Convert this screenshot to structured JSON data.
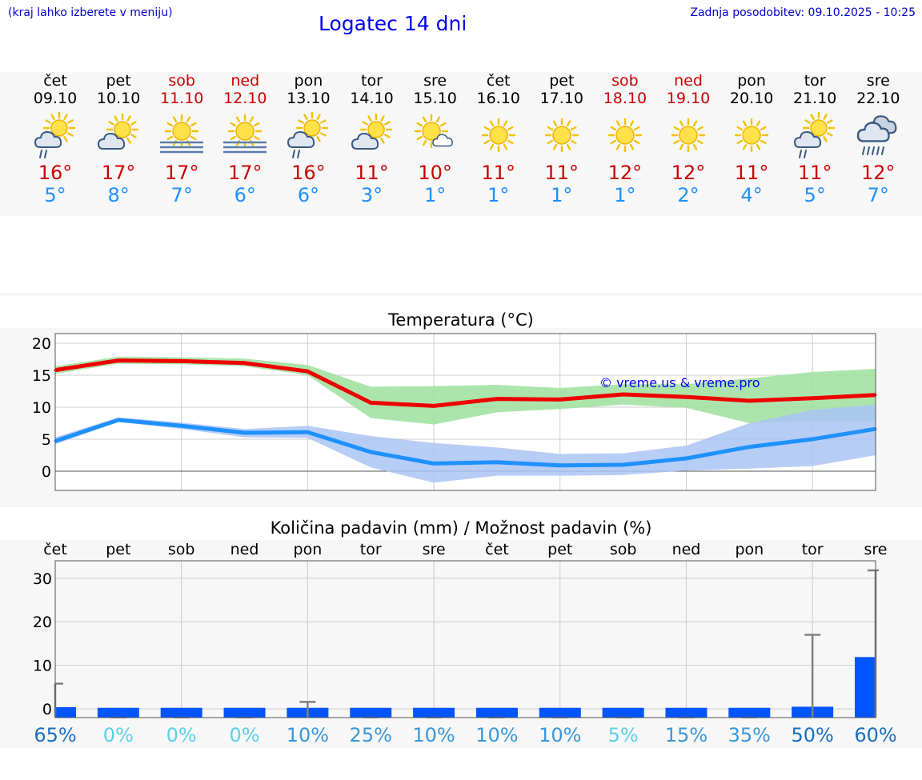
{
  "header": {
    "hint": "(kraj lahko izberete v meniju)",
    "title": "Logatec 14 dni",
    "updated": "Zadnja posodobitev: 09.10.2025 - 10:25"
  },
  "days": [
    {
      "name": "čet",
      "date": "09.10",
      "weekend": false,
      "icon": "sun-cloud-rain-icon",
      "tmax": "16°",
      "tmin": "5°"
    },
    {
      "name": "pet",
      "date": "10.10",
      "weekend": false,
      "icon": "sun-cloud-icon",
      "tmax": "17°",
      "tmin": "8°"
    },
    {
      "name": "sob",
      "date": "11.10",
      "weekend": true,
      "icon": "sun-fog-icon",
      "tmax": "17°",
      "tmin": "7°"
    },
    {
      "name": "ned",
      "date": "12.10",
      "weekend": true,
      "icon": "sun-fog-icon",
      "tmax": "17°",
      "tmin": "6°"
    },
    {
      "name": "pon",
      "date": "13.10",
      "weekend": false,
      "icon": "sun-cloud-rain-icon",
      "tmax": "16°",
      "tmin": "6°"
    },
    {
      "name": "tor",
      "date": "14.10",
      "weekend": false,
      "icon": "sun-cloud-icon",
      "tmax": "11°",
      "tmin": "3°"
    },
    {
      "name": "sre",
      "date": "15.10",
      "weekend": false,
      "icon": "sun-small-cloud-icon",
      "tmax": "10°",
      "tmin": "1°"
    },
    {
      "name": "čet",
      "date": "16.10",
      "weekend": false,
      "icon": "sun-icon",
      "tmax": "11°",
      "tmin": "1°"
    },
    {
      "name": "pet",
      "date": "17.10",
      "weekend": false,
      "icon": "sun-icon",
      "tmax": "11°",
      "tmin": "1°"
    },
    {
      "name": "sob",
      "date": "18.10",
      "weekend": true,
      "icon": "sun-icon",
      "tmax": "12°",
      "tmin": "1°"
    },
    {
      "name": "ned",
      "date": "19.10",
      "weekend": true,
      "icon": "sun-icon",
      "tmax": "12°",
      "tmin": "2°"
    },
    {
      "name": "pon",
      "date": "20.10",
      "weekend": false,
      "icon": "sun-icon",
      "tmax": "11°",
      "tmin": "4°"
    },
    {
      "name": "tor",
      "date": "21.10",
      "weekend": false,
      "icon": "sun-cloud-rain-icon",
      "tmax": "11°",
      "tmin": "5°"
    },
    {
      "name": "sre",
      "date": "22.10",
      "weekend": false,
      "icon": "cloud-heavy-rain-icon",
      "tmax": "12°",
      "tmin": "7°"
    }
  ],
  "colors": {
    "max_line": "#ee0000",
    "max_band": "#9ee09e",
    "min_line": "#1e90ff",
    "min_band": "#a9c4f5",
    "bar": "#0055ff",
    "whisker": "#808080"
  },
  "chart_data": [
    {
      "type": "line",
      "title": "Temperatura (°C)",
      "watermark": "© vreme.us & vreme.pro",
      "x": [
        0,
        1,
        2,
        3,
        4,
        5,
        6,
        7,
        8,
        9,
        10,
        11,
        12,
        13
      ],
      "yticks": [
        0,
        5,
        10,
        15,
        20
      ],
      "ylim": [
        -3,
        21.5
      ],
      "series": [
        {
          "name": "max",
          "values": [
            15.8,
            17.3,
            17.2,
            16.9,
            15.6,
            10.7,
            10.2,
            11.3,
            11.2,
            12.0,
            11.6,
            11.0,
            11.4,
            11.9
          ],
          "band_low": [
            15.2,
            16.8,
            16.7,
            16.4,
            15.0,
            8.3,
            7.3,
            9.2,
            9.7,
            10.4,
            9.9,
            7.5,
            7.8,
            7.8
          ],
          "band_high": [
            16.4,
            17.9,
            17.8,
            17.6,
            16.6,
            13.2,
            13.3,
            13.5,
            13.0,
            13.6,
            13.6,
            14.5,
            15.5,
            16.0
          ]
        },
        {
          "name": "min",
          "values": [
            4.7,
            8.0,
            7.1,
            6.0,
            6.1,
            3.0,
            1.2,
            1.4,
            0.9,
            1.0,
            2.0,
            3.8,
            5.0,
            6.6
          ],
          "band_low": [
            4.2,
            7.7,
            6.6,
            5.3,
            5.2,
            0.6,
            -1.8,
            -0.7,
            -0.7,
            -0.6,
            0.1,
            0.4,
            0.8,
            2.5
          ],
          "band_high": [
            5.3,
            8.4,
            7.6,
            6.6,
            7.1,
            5.5,
            4.4,
            3.7,
            2.7,
            2.8,
            4.0,
            7.5,
            9.6,
            10.4
          ]
        }
      ]
    },
    {
      "type": "bar",
      "title": "Količina padavin (mm) / Možnost padavin (%)",
      "categories": [
        "čet",
        "pet",
        "sob",
        "ned",
        "pon",
        "tor",
        "sre",
        "čet",
        "pet",
        "sob",
        "ned",
        "pon",
        "tor",
        "sre"
      ],
      "yticks": [
        0,
        10,
        20,
        30
      ],
      "ylim": [
        -2,
        34
      ],
      "values": [
        0.4,
        0,
        0,
        0,
        0.2,
        0,
        0,
        0,
        0,
        0,
        0,
        0,
        0.5,
        11.9
      ],
      "max": [
        5.8,
        0,
        0,
        0,
        1.6,
        0,
        0,
        0,
        0,
        0,
        0,
        0,
        17.0,
        31.8
      ],
      "chance": [
        "65%",
        "0%",
        "0%",
        "0%",
        "10%",
        "25%",
        "10%",
        "10%",
        "10%",
        "5%",
        "15%",
        "35%",
        "50%",
        "60%"
      ],
      "chance_values": [
        65,
        0,
        0,
        0,
        10,
        25,
        10,
        10,
        10,
        5,
        15,
        35,
        50,
        60
      ]
    }
  ]
}
